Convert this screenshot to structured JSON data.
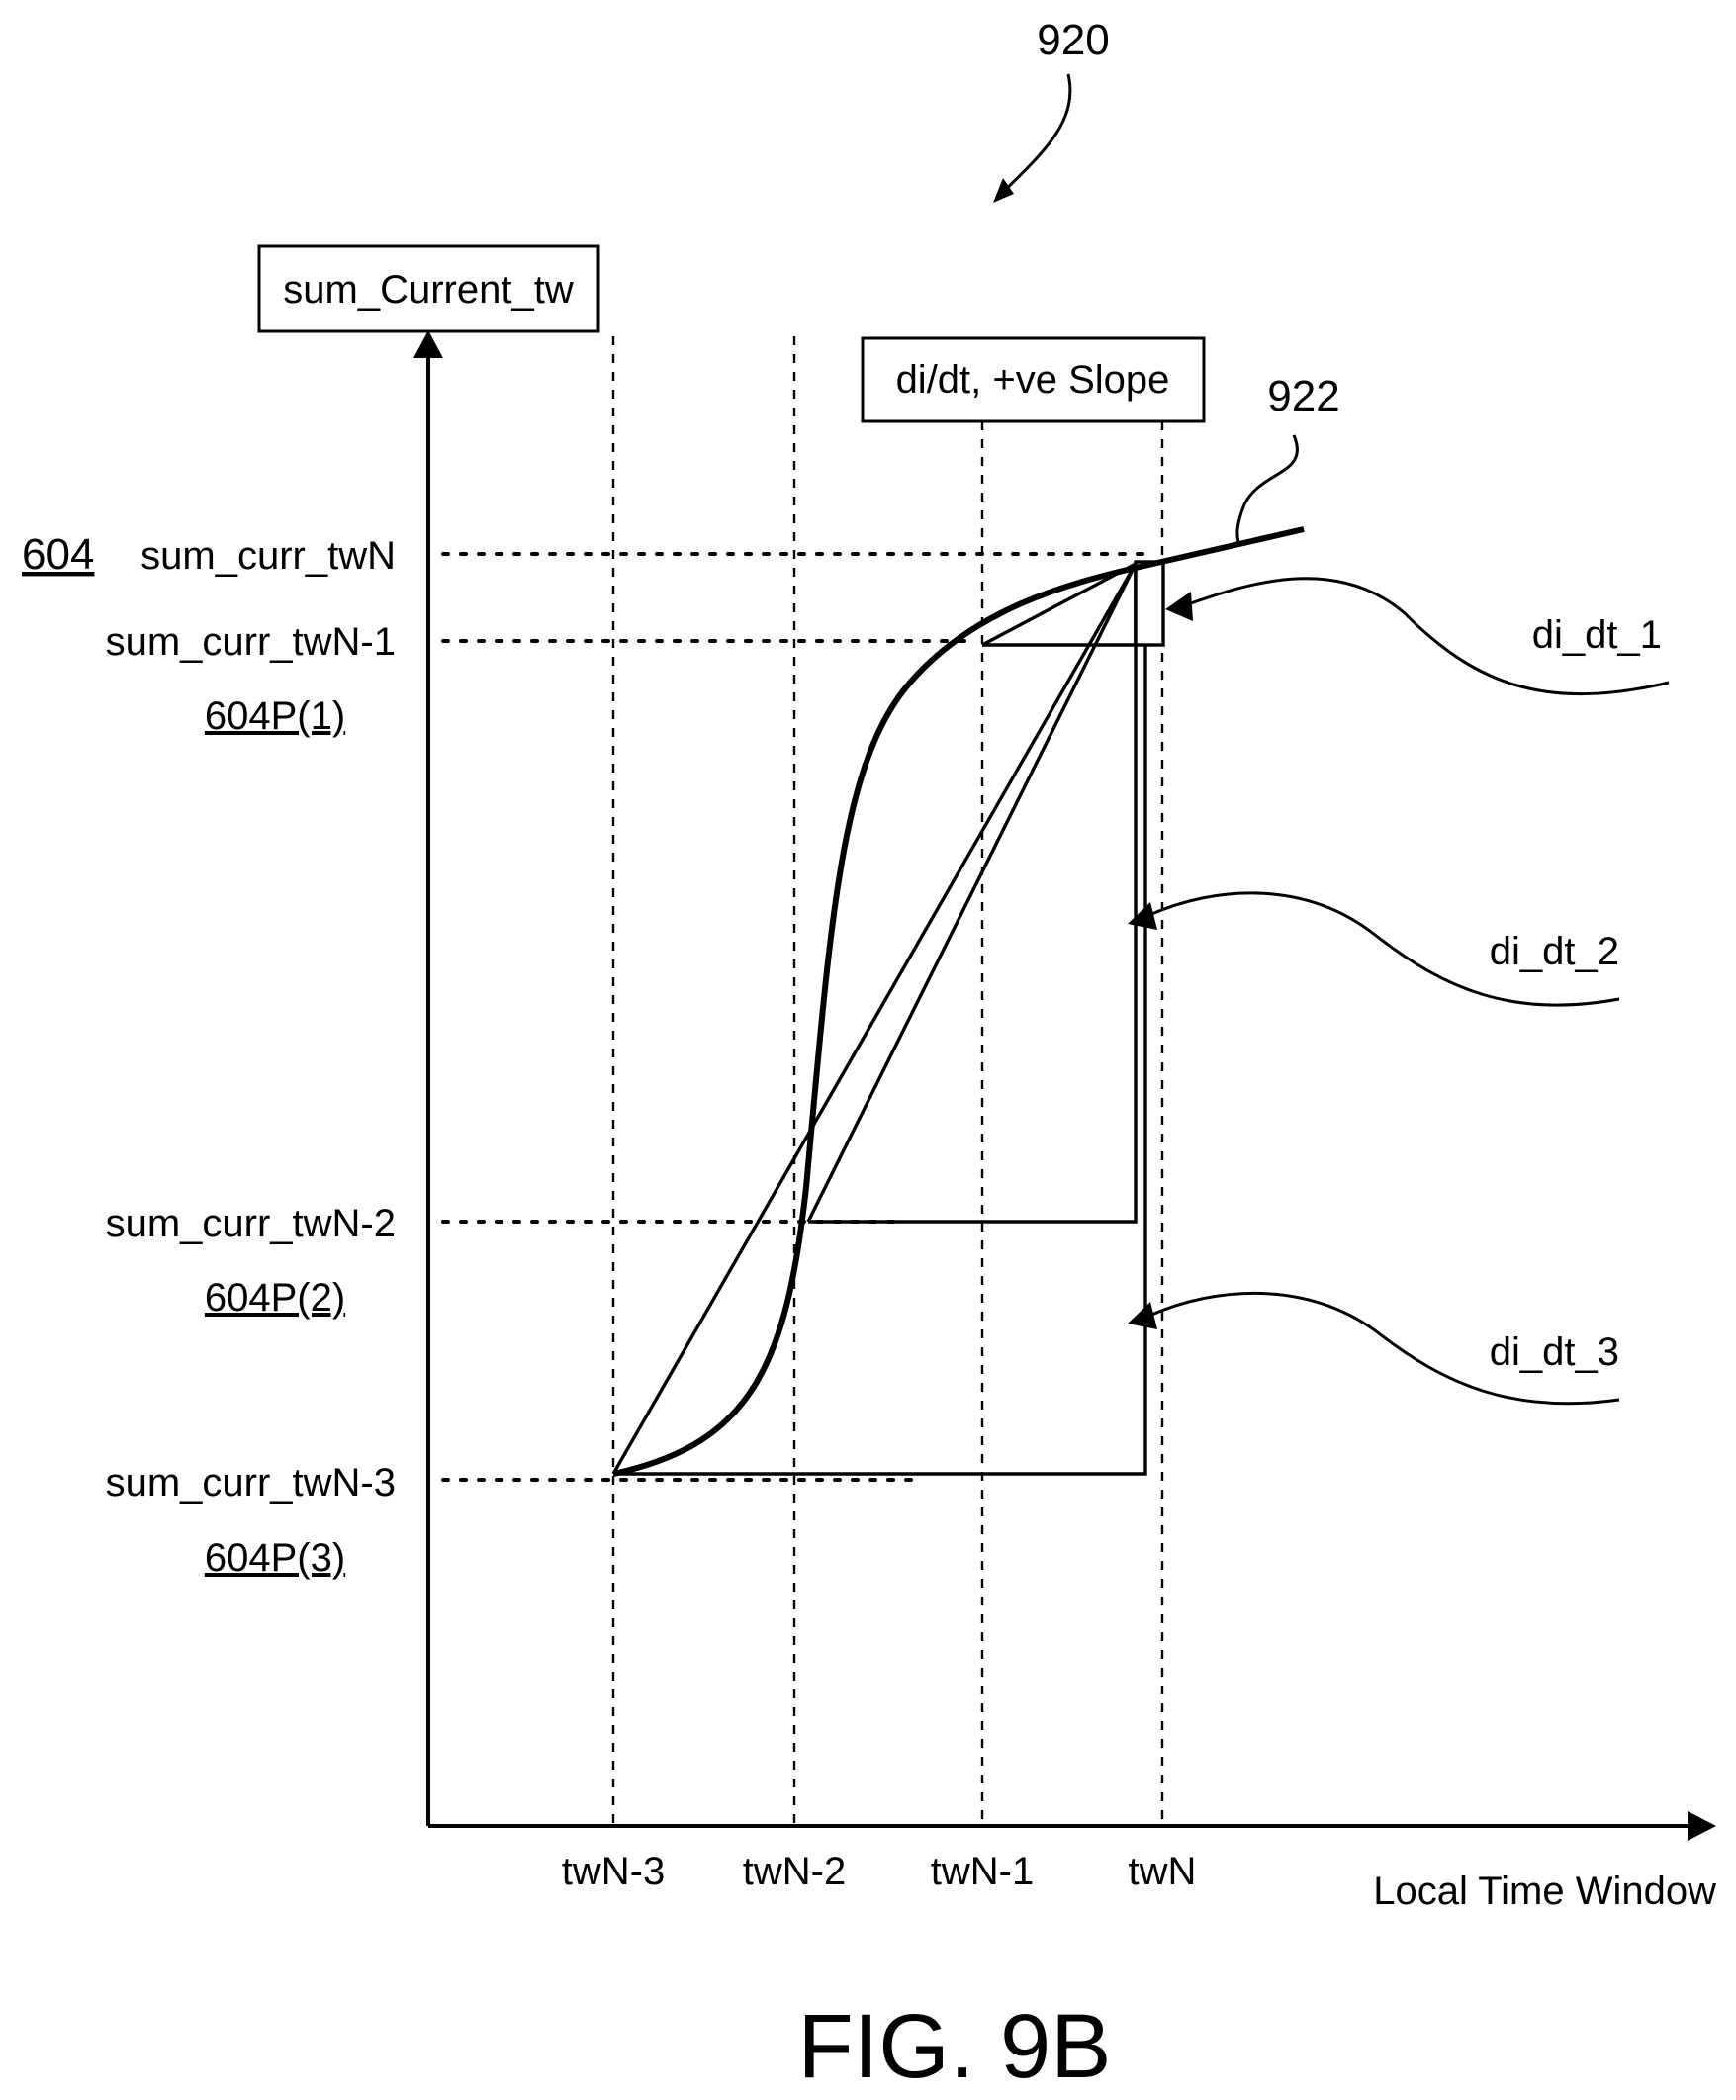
{
  "figure": {
    "ref_number": "920",
    "curve_ref": "922",
    "title": "FIG. 9B"
  },
  "axes": {
    "y_label": "sum_Current_tw",
    "x_label": "Local Time Window",
    "x_ticks": [
      "twN-3",
      "twN-2",
      "twN-1",
      "twN"
    ]
  },
  "slope_box": "di/dt, +ve Slope",
  "y_levels": {
    "group_ref": "604",
    "items": [
      {
        "label": "sum_curr_twN",
        "ref": ""
      },
      {
        "label": "sum_curr_twN-1",
        "ref": "604P(1)"
      },
      {
        "label": "sum_curr_twN-2",
        "ref": "604P(2)"
      },
      {
        "label": "sum_curr_twN-3",
        "ref": "604P(3)"
      }
    ]
  },
  "slopes": [
    "di_dt_1",
    "di_dt_2",
    "di_dt_3"
  ]
}
